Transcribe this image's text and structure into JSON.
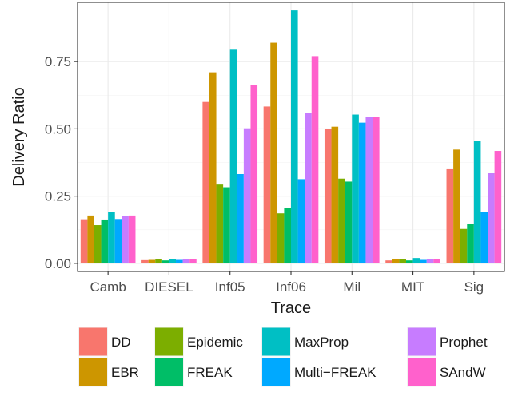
{
  "chart_data": {
    "type": "bar",
    "xlabel": "Trace",
    "ylabel": "Delivery Ratio",
    "categories": [
      "Camb",
      "DIESEL",
      "Inf05",
      "Inf06",
      "Mil",
      "MIT",
      "Sig"
    ],
    "ylim": [
      -0.03,
      0.97
    ],
    "yticks": [
      0.0,
      0.25,
      0.5,
      0.75
    ],
    "ytick_labels": [
      "0.00",
      "0.25",
      "0.50",
      "0.75"
    ],
    "grid": true,
    "legend_position": "bottom",
    "series": [
      {
        "name": "DD",
        "color": "#F8766D",
        "values": [
          0.164,
          0.012,
          0.6,
          0.583,
          0.5,
          0.011,
          0.35
        ]
      },
      {
        "name": "EBR",
        "color": "#CD9600",
        "values": [
          0.178,
          0.013,
          0.71,
          0.82,
          0.508,
          0.016,
          0.423
        ]
      },
      {
        "name": "Epidemic",
        "color": "#7CAE00",
        "values": [
          0.142,
          0.015,
          0.293,
          0.186,
          0.315,
          0.015,
          0.128
        ]
      },
      {
        "name": "FREAK",
        "color": "#00BE67",
        "values": [
          0.163,
          0.011,
          0.283,
          0.206,
          0.304,
          0.011,
          0.147
        ]
      },
      {
        "name": "MaxProp",
        "color": "#00BFC4",
        "values": [
          0.19,
          0.015,
          0.797,
          0.94,
          0.553,
          0.02,
          0.456
        ]
      },
      {
        "name": "Multi−FREAK",
        "color": "#00A9FF",
        "values": [
          0.165,
          0.013,
          0.332,
          0.313,
          0.523,
          0.013,
          0.19
        ]
      },
      {
        "name": "Prophet",
        "color": "#C77CFF",
        "values": [
          0.177,
          0.015,
          0.502,
          0.56,
          0.543,
          0.015,
          0.335
        ]
      },
      {
        "name": "SAndW",
        "color": "#FF61CC",
        "values": [
          0.178,
          0.016,
          0.662,
          0.77,
          0.543,
          0.016,
          0.418
        ]
      }
    ]
  }
}
